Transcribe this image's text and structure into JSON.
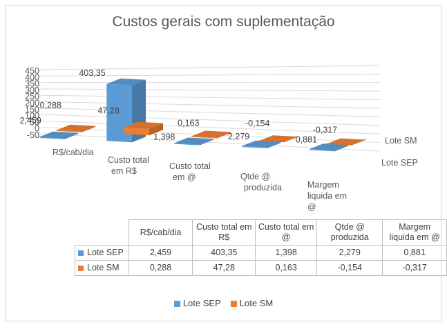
{
  "chart_data": {
    "type": "bar",
    "title": "Custos gerais com suplementação",
    "categories": [
      "R$/cab/dia",
      "Custo total em R$",
      "Custo total em @",
      "Qtde @ produzida",
      "Margem liquida em @"
    ],
    "series": [
      {
        "name": "Lote SEP",
        "color": "#5b9bd5",
        "values": [
          2.459,
          403.35,
          1.398,
          2.279,
          0.881
        ],
        "labels": [
          "2,459",
          "403,35",
          "1,398",
          "2,279",
          "0,881"
        ]
      },
      {
        "name": "Lote SM",
        "color": "#ed7d31",
        "values": [
          0.288,
          47.28,
          0.163,
          -0.154,
          -0.317
        ],
        "labels": [
          "0,288",
          "47,28",
          "0,163",
          "-0,154",
          "-0,317"
        ]
      }
    ],
    "ylim": [
      -50,
      450
    ],
    "yticks": [
      "450",
      "400",
      "350",
      "300",
      "250",
      "200",
      "150",
      "100",
      "50",
      "0",
      "-50"
    ],
    "grid": true,
    "legend": "bottom",
    "data_table": true
  }
}
